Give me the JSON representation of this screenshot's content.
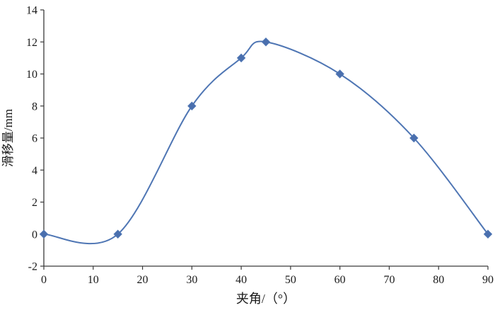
{
  "chart": {
    "line_color": "#4f76b4",
    "marker_color": "#4a6fae",
    "axis_color": "#3a3a3a",
    "tick_label_color": "#1a1a1a",
    "background": "#ffffff",
    "marker_size": 5.5,
    "line_width": 2
  },
  "chart_data": {
    "type": "line",
    "x": [
      0,
      15,
      30,
      40,
      45,
      60,
      75,
      90
    ],
    "y": [
      0,
      0,
      8,
      11,
      12,
      10,
      6,
      0
    ],
    "series_name": "滑移量",
    "title": "",
    "xlabel": "夹角/（°）",
    "ylabel": "滑移量/mm",
    "xlim": [
      0,
      90
    ],
    "ylim": [
      -2,
      14
    ],
    "xticks": [
      0,
      10,
      20,
      30,
      40,
      50,
      60,
      70,
      80,
      90
    ],
    "yticks": [
      -2,
      0,
      2,
      4,
      6,
      8,
      10,
      12,
      14
    ],
    "grid": false,
    "legend": false,
    "marker": "diamond",
    "curve": "smooth"
  }
}
